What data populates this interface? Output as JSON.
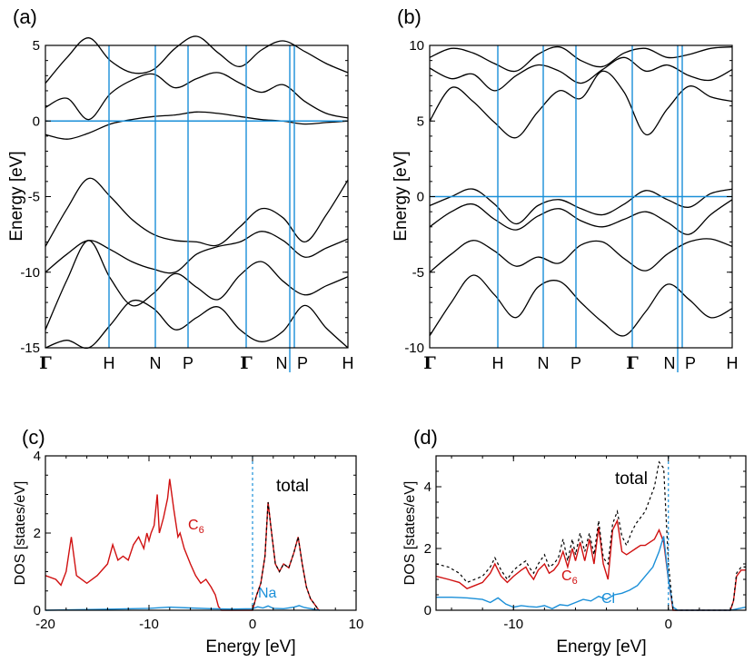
{
  "chart_data": [
    {
      "panel": "(a)",
      "type": "line",
      "ylabel": "Energy [eV]",
      "ylim": [
        -15,
        5
      ],
      "yticks": [
        "5",
        "0",
        "-5",
        "-10",
        "-15"
      ],
      "kpoints": [
        "Γ",
        "H",
        "N",
        "P",
        "Γ",
        "N",
        "P",
        "H"
      ],
      "fermi_level": 0,
      "bands": [
        {
          "x": [
            0,
            0.5,
            1,
            1.5,
            2,
            2.5,
            3,
            3.5,
            4,
            4.5,
            5,
            5.5,
            6,
            6.5,
            7
          ],
          "y": [
            -0.9,
            -1.2,
            -0.8,
            -0.2,
            0.1,
            0.3,
            0.4,
            0.6,
            0.5,
            0.3,
            0.1,
            0.0,
            -0.2,
            -0.1,
            0.0
          ]
        },
        {
          "x": [
            0,
            0.5,
            1,
            1.5,
            2,
            2.5,
            3,
            3.5,
            4,
            4.5,
            5,
            5.5,
            6,
            6.5,
            7
          ],
          "y": [
            0.9,
            1.5,
            0.1,
            1.8,
            2.7,
            3.1,
            2.2,
            2.8,
            3.2,
            2.5,
            1.9,
            2.4,
            1.3,
            0.5,
            0.2
          ]
        },
        {
          "x": [
            0,
            0.5,
            1,
            1.5,
            2,
            2.5,
            3,
            3.5,
            4,
            4.5,
            5,
            5.5,
            6,
            6.5,
            7
          ],
          "y": [
            2.5,
            4.2,
            5.5,
            4.0,
            3.2,
            3.4,
            4.8,
            5.6,
            4.5,
            3.6,
            4.7,
            5.3,
            4.6,
            3.8,
            3.2
          ]
        },
        {
          "x": [
            0,
            0.5,
            1,
            1.5,
            2,
            2.5,
            3,
            3.5,
            4,
            4.5,
            5,
            5.5,
            6,
            6.5,
            7
          ],
          "y": [
            -8.3,
            -5.8,
            -3.8,
            -5.0,
            -6.5,
            -7.5,
            -7.9,
            -8.0,
            -8.2,
            -7.0,
            -5.8,
            -6.4,
            -8.0,
            -6.2,
            -3.9
          ]
        },
        {
          "x": [
            0,
            0.5,
            1,
            1.5,
            2,
            2.5,
            3,
            3.5,
            4,
            4.5,
            5,
            5.5,
            6,
            6.5,
            7
          ],
          "y": [
            -10.0,
            -8.8,
            -7.9,
            -8.5,
            -9.3,
            -9.8,
            -10.0,
            -8.8,
            -8.3,
            -8.0,
            -7.3,
            -7.9,
            -9.0,
            -8.4,
            -7.8
          ]
        },
        {
          "x": [
            0,
            0.5,
            1,
            1.5,
            2,
            2.5,
            3,
            3.5,
            4,
            4.5,
            5,
            5.5,
            6,
            6.5,
            7
          ],
          "y": [
            -13.8,
            -10.5,
            -7.9,
            -10.4,
            -12.2,
            -11.4,
            -10.1,
            -11.0,
            -11.8,
            -10.2,
            -9.3,
            -10.6,
            -11.5,
            -10.9,
            -10.3
          ]
        },
        {
          "x": [
            0,
            0.5,
            1,
            1.5,
            2,
            2.5,
            3,
            3.5,
            4,
            4.5,
            5,
            5.5,
            6,
            6.5,
            7
          ],
          "y": [
            -15.0,
            -14.5,
            -15.0,
            -13.5,
            -11.9,
            -12.4,
            -13.8,
            -13.0,
            -12.3,
            -13.8,
            -14.6,
            -13.9,
            -12.2,
            -13.7,
            -15.0
          ]
        }
      ]
    },
    {
      "panel": "(b)",
      "type": "line",
      "ylabel": "Energy [eV]",
      "ylim": [
        -10,
        10
      ],
      "yticks": [
        "10",
        "5",
        "0",
        "-5",
        "-10"
      ],
      "kpoints": [
        "Γ",
        "H",
        "N",
        "P",
        "Γ",
        "N",
        "P",
        "H"
      ],
      "fermi_level": 0,
      "bands": [
        {
          "x": [
            0,
            0.5,
            1,
            1.5,
            2,
            2.5,
            3,
            3.5,
            4,
            4.5,
            5,
            5.5,
            6,
            6.5,
            7
          ],
          "y": [
            5.0,
            7.2,
            6.3,
            4.9,
            3.9,
            5.6,
            7.0,
            6.5,
            8.3,
            6.9,
            4.1,
            5.8,
            7.3,
            6.6,
            6.3
          ]
        },
        {
          "x": [
            0,
            0.5,
            1,
            1.5,
            2,
            2.5,
            3,
            3.5,
            4,
            4.5,
            5,
            5.5,
            6,
            6.5,
            7
          ],
          "y": [
            8.5,
            7.8,
            8.1,
            7.0,
            8.0,
            8.7,
            8.3,
            7.5,
            8.4,
            9.2,
            8.3,
            8.7,
            8.0,
            7.7,
            8.4
          ]
        },
        {
          "x": [
            0,
            0.5,
            1,
            1.5,
            2,
            2.5,
            3,
            3.5,
            4,
            4.5,
            5,
            5.5,
            6,
            6.5,
            7
          ],
          "y": [
            9.2,
            9.8,
            9.5,
            8.8,
            8.3,
            9.4,
            9.9,
            9.0,
            8.6,
            9.5,
            9.8,
            9.2,
            9.4,
            9.8,
            9.9
          ]
        },
        {
          "x": [
            0,
            0.5,
            1,
            1.5,
            2,
            2.5,
            3,
            3.5,
            4,
            4.5,
            5,
            5.5,
            6,
            6.5,
            7
          ],
          "y": [
            -0.6,
            0.0,
            0.5,
            -0.5,
            -1.8,
            -0.6,
            -0.2,
            -0.8,
            -1.2,
            -0.5,
            0.4,
            -0.2,
            -0.7,
            0.2,
            0.5
          ]
        },
        {
          "x": [
            0,
            0.5,
            1,
            1.5,
            2,
            2.5,
            3,
            3.5,
            4,
            4.5,
            5,
            5.5,
            6,
            6.5,
            7
          ],
          "y": [
            -2.0,
            -1.0,
            -0.5,
            -1.5,
            -2.2,
            -1.3,
            -0.8,
            -1.6,
            -2.0,
            -1.5,
            -1.0,
            -1.7,
            -2.5,
            -1.2,
            -0.2
          ]
        },
        {
          "x": [
            0,
            0.5,
            1,
            1.5,
            2,
            2.5,
            3,
            3.5,
            4,
            4.5,
            5,
            5.5,
            6,
            6.5,
            7
          ],
          "y": [
            -5.0,
            -3.8,
            -2.9,
            -3.6,
            -4.6,
            -4.0,
            -4.4,
            -3.2,
            -3.0,
            -4.1,
            -4.9,
            -3.8,
            -3.0,
            -2.8,
            -3.3
          ]
        },
        {
          "x": [
            0,
            0.5,
            1,
            1.5,
            2,
            2.5,
            3,
            3.5,
            4,
            4.5,
            5,
            5.5,
            6,
            6.5,
            7
          ],
          "y": [
            -9.2,
            -7.0,
            -5.2,
            -6.5,
            -8.0,
            -6.0,
            -5.6,
            -7.0,
            -8.3,
            -9.2,
            -7.6,
            -5.8,
            -6.8,
            -8.0,
            -7.4
          ]
        }
      ]
    },
    {
      "panel": "(c)",
      "type": "line",
      "xlabel": "Energy [eV]",
      "ylabel": "DOS [states/eV]",
      "xlim": [
        -20,
        10
      ],
      "ylim": [
        0,
        4
      ],
      "xticks": [
        "-20",
        "-10",
        "0",
        "10"
      ],
      "yticks": [
        "0",
        "2",
        "4"
      ],
      "fermi_level": 0,
      "series": [
        {
          "name": "total",
          "x": [
            0.0,
            0.4,
            0.8,
            1.2,
            1.5,
            1.8,
            2.2,
            2.6,
            3.0,
            3.5,
            4.0,
            4.4,
            4.8,
            5.2,
            5.6,
            6.0,
            6.4
          ],
          "y": [
            0.0,
            0.4,
            0.7,
            1.4,
            2.8,
            2.1,
            1.2,
            1.0,
            1.2,
            1.1,
            1.5,
            1.9,
            1.2,
            0.6,
            0.3,
            0.15,
            0.0
          ]
        },
        {
          "name": "C6",
          "x": [
            -20,
            -19,
            -18.5,
            -18,
            -17.5,
            -17,
            -16,
            -15,
            -14,
            -13.5,
            -13,
            -12.5,
            -12,
            -11.5,
            -11,
            -10.5,
            -10.2,
            -10,
            -9.8,
            -9.5,
            -9.2,
            -9,
            -8.6,
            -8.2,
            -8,
            -7.6,
            -7.2,
            -7,
            -6.6,
            -6,
            -5.5,
            -5,
            -4.5,
            -4,
            -3.6,
            -3.3,
            -3.0,
            0.0,
            0.4,
            0.8,
            1.2,
            1.5,
            1.8,
            2.2,
            2.6,
            3.0,
            3.5,
            4.0,
            4.4,
            4.8,
            5.2,
            5.6,
            6.0,
            6.4
          ],
          "y": [
            0.9,
            0.8,
            0.65,
            1.0,
            1.9,
            0.9,
            0.7,
            0.9,
            1.2,
            1.7,
            1.3,
            1.4,
            1.3,
            1.7,
            1.9,
            1.6,
            2.0,
            1.8,
            2.0,
            2.2,
            3.0,
            2.0,
            2.4,
            2.9,
            3.4,
            2.6,
            1.9,
            2.0,
            1.6,
            1.2,
            0.9,
            0.7,
            0.8,
            0.6,
            0.4,
            0.1,
            0.0,
            0.0,
            0.4,
            0.7,
            1.4,
            2.8,
            2.1,
            1.2,
            1.0,
            1.2,
            1.1,
            1.5,
            1.9,
            1.2,
            0.6,
            0.3,
            0.15,
            0.0
          ]
        },
        {
          "name": "Na",
          "x": [
            -20,
            -15,
            -10,
            -8,
            -6,
            -4,
            -2,
            0,
            0.5,
            1,
            1.5,
            2,
            3,
            4,
            4.5,
            5,
            6,
            6.5
          ],
          "y": [
            0,
            0.02,
            0.05,
            0.08,
            0.06,
            0.04,
            0.03,
            0.04,
            0.09,
            0.06,
            0.11,
            0.05,
            0.04,
            0.08,
            0.12,
            0.07,
            0.02,
            0.0
          ]
        }
      ],
      "annotations": [
        "total",
        "C",
        "6",
        "Na"
      ]
    },
    {
      "panel": "(d)",
      "type": "line",
      "xlabel": "Energy [eV]",
      "ylabel": "DOS [states/eV]",
      "xlim": [
        -15,
        5
      ],
      "ylim": [
        0,
        5
      ],
      "xticks": [
        "-10",
        "0"
      ],
      "yticks": [
        "0",
        "2",
        "4"
      ],
      "fermi_level": 0,
      "series": [
        {
          "name": "total",
          "x": [
            -15,
            -14.2,
            -13.5,
            -13,
            -12.5,
            -12,
            -11.5,
            -11.2,
            -10.8,
            -10.4,
            -10,
            -9.5,
            -9.2,
            -9.0,
            -8.7,
            -8.4,
            -8.0,
            -7.7,
            -7.4,
            -7.1,
            -6.8,
            -6.5,
            -6.2,
            -6.0,
            -5.7,
            -5.4,
            -5.1,
            -4.8,
            -4.5,
            -4.2,
            -3.9,
            -3.6,
            -3.3,
            -3.0,
            -2.7,
            -2.4,
            -2.1,
            -1.8,
            -1.5,
            -1.2,
            -0.9,
            -0.6,
            -0.3,
            0.0,
            0.3,
            0.6,
            0.9,
            1.2,
            3.0,
            3.5,
            4.0,
            4.2,
            4.4,
            4.7,
            5.0
          ],
          "y": [
            1.5,
            1.4,
            1.2,
            0.9,
            1.0,
            1.1,
            1.4,
            1.7,
            1.3,
            1.0,
            1.3,
            1.5,
            1.6,
            1.4,
            1.2,
            1.5,
            1.8,
            1.4,
            1.5,
            1.7,
            2.3,
            1.6,
            2.3,
            1.8,
            2.5,
            1.9,
            2.5,
            1.8,
            2.9,
            1.7,
            1.5,
            2.8,
            3.2,
            2.4,
            2.1,
            2.5,
            2.8,
            3.0,
            3.2,
            3.6,
            4.0,
            4.8,
            4.6,
            1.5,
            0.0,
            0.0,
            0.0,
            0.0,
            0.0,
            0.0,
            0.0,
            0.3,
            1.2,
            1.4,
            1.4
          ]
        },
        {
          "name": "C6",
          "x": [
            -15,
            -14.2,
            -13.5,
            -13,
            -12.5,
            -12,
            -11.5,
            -11.2,
            -10.8,
            -10.4,
            -10,
            -9.5,
            -9.2,
            -9.0,
            -8.7,
            -8.4,
            -8.0,
            -7.7,
            -7.4,
            -7.1,
            -6.8,
            -6.5,
            -6.2,
            -6.0,
            -5.7,
            -5.4,
            -5.1,
            -4.8,
            -4.5,
            -4.2,
            -3.9,
            -3.6,
            -3.3,
            -3.0,
            -2.7,
            -2.4,
            -2.1,
            -1.8,
            -1.5,
            -1.2,
            -0.9,
            -0.6,
            -0.3,
            0.0,
            0.3,
            0.6,
            3.0,
            3.5,
            4.0,
            4.2,
            4.4,
            4.7,
            5.0
          ],
          "y": [
            1.1,
            1.0,
            0.9,
            0.7,
            0.8,
            0.9,
            1.2,
            1.5,
            1.1,
            0.9,
            1.1,
            1.3,
            1.4,
            1.2,
            1.0,
            1.3,
            1.5,
            1.2,
            1.3,
            1.5,
            1.9,
            1.4,
            2.0,
            1.6,
            2.2,
            1.6,
            2.3,
            1.5,
            2.7,
            1.5,
            1.0,
            2.6,
            2.9,
            1.9,
            1.8,
            1.9,
            2.0,
            2.1,
            2.1,
            2.2,
            2.3,
            2.6,
            2.2,
            1.0,
            0.0,
            0.0,
            0.0,
            0.0,
            0.0,
            0.3,
            1.1,
            1.3,
            1.3
          ]
        },
        {
          "name": "Cl",
          "x": [
            -15,
            -14,
            -13,
            -12,
            -11.5,
            -11,
            -10.5,
            -10,
            -9.5,
            -9,
            -8.5,
            -8,
            -7.5,
            -7,
            -6.5,
            -6,
            -5.5,
            -5,
            -4.5,
            -4,
            -3.5,
            -3,
            -2.5,
            -2,
            -1.5,
            -1.0,
            -0.6,
            -0.3,
            0.0,
            0.3,
            0.6,
            3.0,
            4.0,
            4.5,
            5.0
          ],
          "y": [
            0.42,
            0.42,
            0.4,
            0.35,
            0.25,
            0.4,
            0.2,
            0.1,
            0.15,
            0.12,
            0.1,
            0.15,
            0.05,
            0.18,
            0.15,
            0.25,
            0.35,
            0.3,
            0.45,
            0.35,
            0.5,
            0.55,
            0.65,
            0.8,
            1.1,
            1.4,
            1.9,
            2.4,
            1.0,
            0.1,
            0.0,
            0.0,
            0.0,
            0.05,
            0.1
          ]
        }
      ],
      "annotations": [
        "total",
        "C",
        "6",
        "Cl"
      ]
    }
  ],
  "labels": {
    "panel_a": "(a)",
    "panel_b": "(b)",
    "panel_c": "(c)",
    "panel_d": "(d)",
    "ylabel_bands": "Energy [eV]",
    "ylabel_dos": "DOS [states/eV]",
    "xlabel_dos": "Energy [eV]",
    "total": "total",
    "c6_base": "C",
    "c6_sub": "6",
    "na": "Na",
    "cl": "Cl"
  },
  "colors": {
    "accent_blue": "#1a8fd8",
    "pdos_red": "#d01010",
    "band_black": "#000000"
  }
}
